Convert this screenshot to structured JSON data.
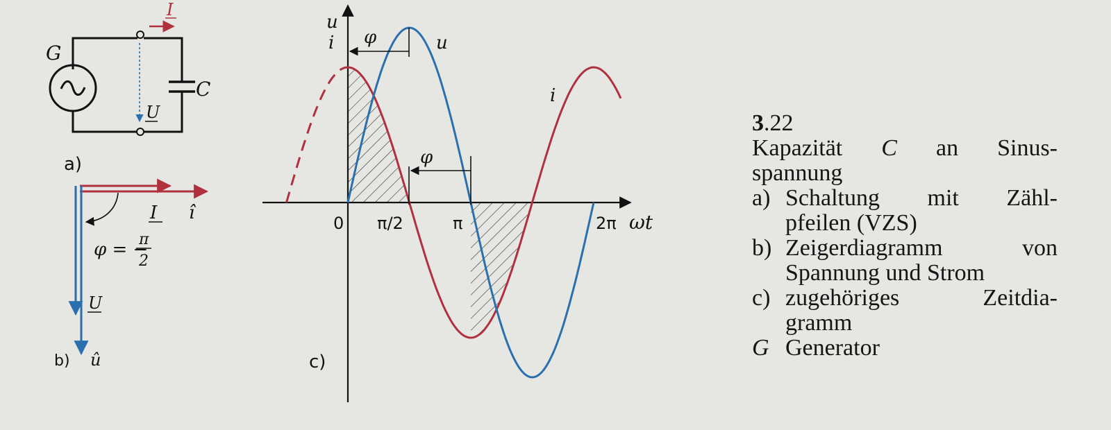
{
  "figure": {
    "circuit": {
      "panel_label": "a)",
      "generator_label": "G",
      "capacitor_label": "C",
      "voltage_label": "U",
      "current_label": "I"
    },
    "phasor": {
      "panel_label": "b)",
      "current_label": "I",
      "current_peak_label": "î",
      "voltage_label": "U",
      "voltage_peak_label": "û",
      "phi_prefix": "φ = −",
      "phi_numerator": "π",
      "phi_denominator": "2"
    },
    "time_diagram": {
      "panel_label": "c)",
      "y_axis_label_top": "u",
      "y_axis_label_bottom": "i",
      "x_axis_label": "ωt",
      "u_curve_label": "u",
      "i_curve_label": "i",
      "phi_label_top": "φ",
      "phi_label_mid": "φ",
      "ticks": [
        "0",
        "π/2",
        "π",
        "2π"
      ],
      "colors": {
        "u": "#2a6fae",
        "i": "#b0303e"
      }
    }
  },
  "chart_data": {
    "type": "line",
    "xlabel": "ωt",
    "x_ticks": [
      "0",
      "π/2",
      "π",
      "2π"
    ],
    "series": [
      {
        "name": "u",
        "function": "sin(ωt)"
      },
      {
        "name": "i",
        "function": "cos(ωt)"
      }
    ]
  },
  "caption": {
    "number_bold": "3",
    "number_rest": ".22",
    "title_prefix": "Kapazität ",
    "title_var": "C",
    "title_suffix_1": " an Sinus-",
    "title_suffix_2": "spannung",
    "items": [
      {
        "tag": "a)",
        "line1": "Schaltung mit Zähl-",
        "line2": "pfeilen (VZS)"
      },
      {
        "tag": "b)",
        "line1": "Zeigerdiagramm von",
        "line2": "Spannung und Strom"
      },
      {
        "tag": "c)",
        "line1": "zugehöriges Zeitdia-",
        "line2": "gramm"
      }
    ],
    "legend_var": "G",
    "legend_text": "Generator"
  }
}
